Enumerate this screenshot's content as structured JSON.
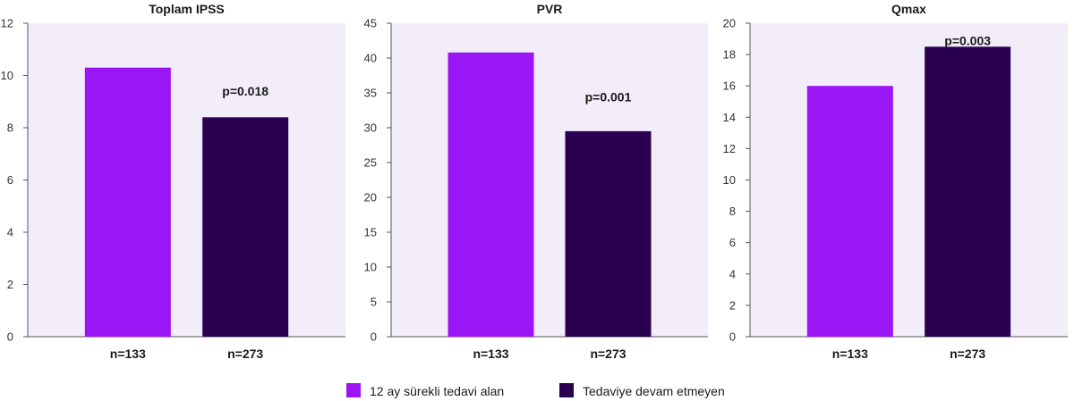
{
  "colors": {
    "series_a": "#9a16f5",
    "series_b": "#2a0050",
    "plot_bg": "#f3edfa"
  },
  "legend": {
    "items": [
      "12 ay sürekli tedavi alan",
      "Tedaviye devam etmeyen"
    ]
  },
  "chart_data": [
    {
      "type": "bar",
      "title": "Toplam IPSS",
      "categories": [
        "n=133",
        "n=273"
      ],
      "series": [
        {
          "name": "12 ay sürekli tedavi alan",
          "values": [
            10.3,
            null
          ]
        },
        {
          "name": "Tedaviye devam etmeyen",
          "values": [
            null,
            8.4
          ]
        }
      ],
      "ylim": [
        0,
        12
      ],
      "yticks": [
        0,
        2,
        4,
        6,
        8,
        10,
        12
      ],
      "annotation": {
        "text": "p=0.018",
        "category": 1,
        "y": 9.4
      },
      "grid": false
    },
    {
      "type": "bar",
      "title": "PVR",
      "categories": [
        "n=133",
        "n=273"
      ],
      "series": [
        {
          "name": "12 ay sürekli tedavi alan",
          "values": [
            40.8,
            null
          ]
        },
        {
          "name": "Tedaviye devam etmeyen",
          "values": [
            null,
            29.5
          ]
        }
      ],
      "ylim": [
        0,
        45
      ],
      "yticks": [
        0,
        5,
        10,
        15,
        20,
        25,
        30,
        35,
        40,
        45
      ],
      "annotation": {
        "text": "p=0.001",
        "category": 1,
        "y": 34.4
      },
      "grid": false
    },
    {
      "type": "bar",
      "title": "Qmax",
      "categories": [
        "n=133",
        "n=273"
      ],
      "series": [
        {
          "name": "12 ay sürekli tedavi alan",
          "values": [
            16.0,
            null
          ]
        },
        {
          "name": "Tedaviye devam etmeyen",
          "values": [
            null,
            18.5
          ]
        }
      ],
      "ylim": [
        0,
        20
      ],
      "yticks": [
        0,
        2,
        4,
        6,
        8,
        10,
        12,
        14,
        16,
        18,
        20
      ],
      "annotation": {
        "text": "p=0.003",
        "category": 1,
        "y": 18.9
      },
      "grid": false
    }
  ]
}
